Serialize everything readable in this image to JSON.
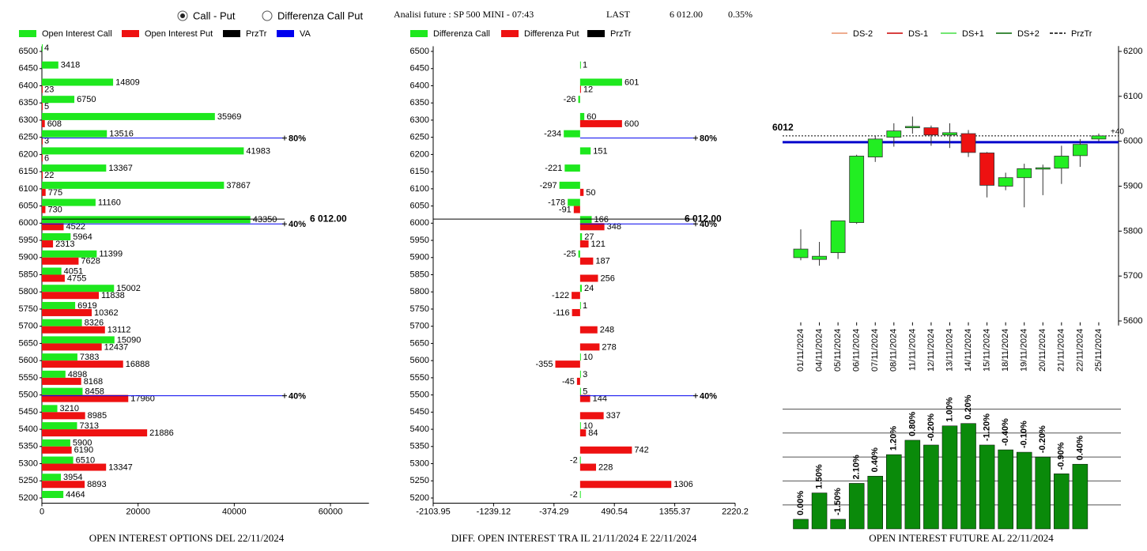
{
  "header": {
    "radio_options": [
      "Call - Put",
      "Differenza Call Put"
    ],
    "selected": 0,
    "title": "Analisi future : SP 500 MINI - 07:43",
    "last_label": "LAST",
    "last_price": "6 012.00",
    "change": "0.35%"
  },
  "chart_data": [
    {
      "type": "bar",
      "orientation": "horizontal",
      "title": "OPEN INTEREST OPTIONS DEL 22/11/2024",
      "categories": [
        6500,
        6450,
        6400,
        6350,
        6300,
        6250,
        6200,
        6150,
        6100,
        6050,
        6000,
        5950,
        5900,
        5850,
        5800,
        5750,
        5700,
        5650,
        5600,
        5550,
        5500,
        5450,
        5400,
        5350,
        5300,
        5250,
        5200
      ],
      "series": [
        {
          "name": "Open Interest Call",
          "color": "#1ee81e",
          "values": [
            4,
            3418,
            14809,
            6750,
            35969,
            13516,
            41983,
            13367,
            37867,
            11160,
            43350,
            5964,
            11399,
            4051,
            15002,
            6919,
            8326,
            15090,
            7383,
            4898,
            8458,
            3210,
            7313,
            5900,
            6510,
            3954,
            4464
          ]
        },
        {
          "name": "Open Interest Put",
          "color": "#ee1111",
          "values": [
            null,
            null,
            23,
            5,
            608,
            3,
            6,
            22,
            775,
            730,
            4522,
            2313,
            7628,
            4755,
            11838,
            10362,
            13112,
            12437,
            16888,
            8168,
            17960,
            8985,
            21886,
            6190,
            13347,
            8893,
            null
          ]
        }
      ],
      "legend_lines": [
        {
          "name": "PrzTr",
          "color": "#000000"
        },
        {
          "name": "VA",
          "color": "#0000ee"
        }
      ],
      "xlim": [
        0,
        68000
      ],
      "xticks": [
        0,
        20000,
        40000,
        60000
      ],
      "ylim": [
        5185,
        6515
      ],
      "price": {
        "value": 6012,
        "label": "6 012.00"
      },
      "va_lines": [
        {
          "strike": 6250,
          "label": "80%"
        },
        {
          "strike": 6000,
          "label": "40%"
        },
        {
          "strike": 5500,
          "label": "40%"
        }
      ]
    },
    {
      "type": "bar",
      "orientation": "horizontal",
      "title": "DIFF. OPEN INTEREST TRA IL 21/11/2024 E 22/11/2024",
      "categories": [
        6500,
        6450,
        6400,
        6350,
        6300,
        6250,
        6200,
        6150,
        6100,
        6050,
        6000,
        5950,
        5900,
        5850,
        5800,
        5750,
        5700,
        5650,
        5600,
        5550,
        5500,
        5450,
        5400,
        5350,
        5300,
        5250,
        5200
      ],
      "series": [
        {
          "name": "Differenza Call",
          "color": "#1ee81e",
          "values": [
            null,
            1,
            601,
            -26,
            60,
            -234,
            151,
            -221,
            -297,
            -178,
            166,
            27,
            -25,
            null,
            24,
            1,
            null,
            null,
            10,
            3,
            5,
            null,
            10,
            null,
            -2,
            null,
            -2
          ]
        },
        {
          "name": "Differenza Put",
          "color": "#ee1111",
          "values": [
            null,
            null,
            12,
            null,
            600,
            null,
            null,
            null,
            50,
            -91,
            348,
            121,
            187,
            256,
            -122,
            -116,
            248,
            278,
            -355,
            -45,
            144,
            337,
            84,
            742,
            228,
            1306,
            null
          ]
        }
      ],
      "legend_lines": [
        {
          "name": "PrzTr",
          "color": "#000000"
        }
      ],
      "xlim": [
        -2103.95,
        2220.2
      ],
      "xticks": [
        -2103.95,
        -1239.12,
        -374.29,
        490.54,
        1355.37,
        2220.2
      ],
      "ylim": [
        5185,
        6515
      ],
      "price": {
        "value": 6012,
        "label": "6 012.00"
      },
      "va_lines": [
        {
          "strike": 6250,
          "label": "80%"
        },
        {
          "strike": 6000,
          "label": "40%"
        },
        {
          "strike": 5500,
          "label": "40%"
        }
      ]
    },
    {
      "type": "candlestick",
      "x": [
        "01/11/2024",
        "04/11/2024",
        "05/11/2024",
        "06/11/2024",
        "07/11/2024",
        "08/11/2024",
        "11/11/2024",
        "12/11/2024",
        "13/11/2024",
        "14/11/2024",
        "15/11/2024",
        "18/11/2024",
        "19/11/2024",
        "20/11/2024",
        "21/11/2024",
        "22/11/2024",
        "25/11/2024"
      ],
      "open": [
        5741,
        5737,
        5752,
        5819,
        5965,
        6009,
        6030,
        6030,
        6014,
        6017,
        5974,
        5900,
        5919,
        5938,
        5940,
        5968,
        6005
      ],
      "high": [
        5804,
        5776,
        5823,
        5970,
        6012,
        6040,
        6055,
        6035,
        6040,
        6025,
        5976,
        5930,
        5950,
        5948,
        5990,
        6005,
        6017
      ],
      "low": [
        5735,
        5723,
        5738,
        5816,
        5954,
        5988,
        6017,
        5990,
        5985,
        5965,
        5875,
        5891,
        5853,
        5880,
        5905,
        5943,
        6000
      ],
      "close": [
        5760,
        5744,
        5823,
        5967,
        6005,
        6023,
        6033,
        6014,
        6019,
        5975,
        5902,
        5919,
        5939,
        5941,
        5967,
        5993,
        6012
      ],
      "up_color": "#22ee22",
      "down_color": "#ee1111",
      "legend_lines": [
        {
          "name": "DS-2",
          "color": "#e8906a"
        },
        {
          "name": "DS-1",
          "color": "#cc0000"
        },
        {
          "name": "DS+1",
          "color": "#44dd44"
        },
        {
          "name": "DS+2",
          "color": "#006600"
        },
        {
          "name": "PrzTr",
          "color": "#000000",
          "dashed": true
        }
      ],
      "ylim": [
        5590,
        6212
      ],
      "yticks": [
        5600,
        5700,
        5800,
        5900,
        6000,
        6100,
        6200
      ],
      "reference_lines": [
        {
          "value": 5998,
          "color": "#0000cc"
        },
        {
          "value": 6012,
          "color": "#000000",
          "dashed": true,
          "label": "6012",
          "end_label": "+40"
        }
      ]
    },
    {
      "type": "bar",
      "orientation": "vertical",
      "title": "OPEN INTEREST FUTURE AL 22/11/2024",
      "values": [
        0.4,
        1.5,
        0.4,
        1.9,
        2.2,
        3.1,
        3.7,
        3.5,
        4.3,
        4.4,
        3.5,
        3.3,
        3.2,
        3.0,
        2.3,
        2.7
      ],
      "bar_labels": [
        "0.00%",
        "1.50%",
        "-1.50%",
        "2.10%",
        "0.40%",
        "1.20%",
        "0.80%",
        "-0.20%",
        "1.00%",
        "0.20%",
        "-1.20%",
        "-0.40%",
        "-0.10%",
        "-0.20%",
        "-0.90%",
        "0.40%"
      ],
      "color": "#0a8a0a",
      "ylim": [
        0,
        5
      ],
      "yticks": [
        1,
        2,
        3,
        4,
        5
      ],
      "grid": true
    }
  ]
}
